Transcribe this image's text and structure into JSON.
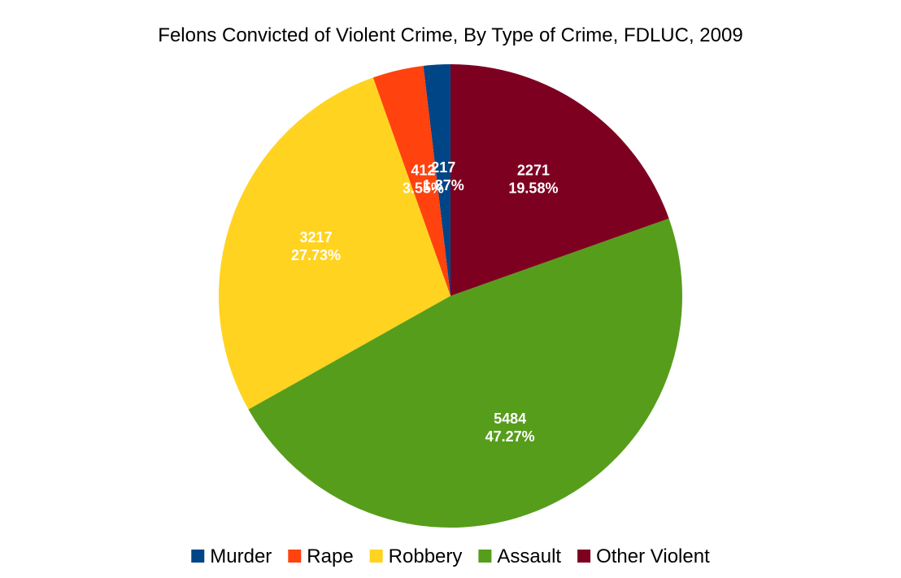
{
  "chart_data": {
    "type": "pie",
    "title": "Felons Convicted of Violent Crime, By Type of Crime, FDLUC, 2009",
    "legend_position": "bottom",
    "slices": [
      {
        "name": "Murder",
        "value": 217,
        "percent_label": "1.87%",
        "color": "#004586"
      },
      {
        "name": "Rape",
        "value": 412,
        "percent_label": "3.55%",
        "color": "#FF420E"
      },
      {
        "name": "Robbery",
        "value": 3217,
        "percent_label": "27.73%",
        "color": "#FFD320"
      },
      {
        "name": "Assault",
        "value": 5484,
        "percent_label": "47.27%",
        "color": "#579D1C"
      },
      {
        "name": "Other Violent",
        "value": 2271,
        "percent_label": "19.58%",
        "color": "#7E0021"
      }
    ]
  }
}
